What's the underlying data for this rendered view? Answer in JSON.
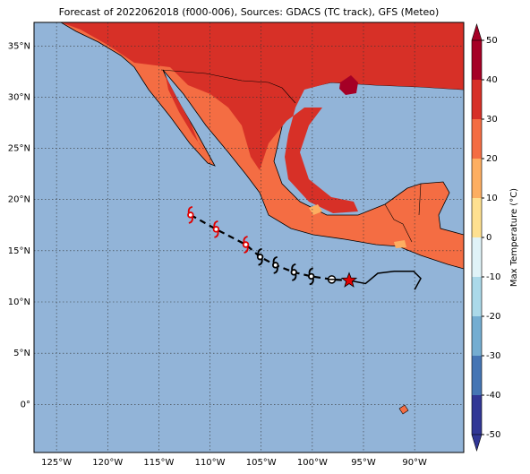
{
  "chart_data": {
    "type": "map",
    "title": "Forecast of 2022062018 (f000-006), Sources: GDACS (TC track), GFS (Meteo)",
    "xlim": [
      -127.2,
      -85.2
    ],
    "ylim": [
      -4.7,
      37.3
    ],
    "xticks": [
      {
        "value": -125,
        "label": "125°W"
      },
      {
        "value": -120,
        "label": "120°W"
      },
      {
        "value": -115,
        "label": "115°W"
      },
      {
        "value": -110,
        "label": "110°W"
      },
      {
        "value": -105,
        "label": "105°W"
      },
      {
        "value": -100,
        "label": "100°W"
      },
      {
        "value": -95,
        "label": "95°W"
      },
      {
        "value": -90,
        "label": "90°W"
      }
    ],
    "yticks": [
      {
        "value": 0,
        "label": "0°"
      },
      {
        "value": 5,
        "label": "5°N"
      },
      {
        "value": 10,
        "label": "10°N"
      },
      {
        "value": 15,
        "label": "15°N"
      },
      {
        "value": 20,
        "label": "20°N"
      },
      {
        "value": 25,
        "label": "25°N"
      },
      {
        "value": 30,
        "label": "30°N"
      },
      {
        "value": 35,
        "label": "35°N"
      }
    ],
    "grid": true,
    "colorbar": {
      "label": "Max Temperature (°C)",
      "lim": [
        -50,
        50
      ],
      "ticks": [
        -50,
        -40,
        -30,
        -20,
        -10,
        0,
        10,
        20,
        30,
        40,
        50
      ],
      "colors": [
        "#313695",
        "#4575b4",
        "#74add1",
        "#abd9e9",
        "#e0f3f8",
        "#fee090",
        "#fdae61",
        "#f46d43",
        "#d73027",
        "#a50026"
      ]
    },
    "forecast_track": {
      "lon": [
        -111.9,
        -109.4,
        -106.5,
        -105.1,
        -103.6,
        -101.8,
        -100.1,
        -98.1
      ],
      "lat": [
        18.5,
        17.1,
        15.6,
        14.4,
        13.6,
        12.9,
        12.5,
        12.2
      ],
      "point_colors": [
        "#e00000",
        "#e00000",
        "#e00000",
        "#000000",
        "#000000",
        "#000000",
        "#000000",
        "#000000"
      ],
      "point_symbols": [
        "cyclone",
        "cyclone",
        "cyclone",
        "cyclone",
        "cyclone",
        "cyclone",
        "cyclone",
        "low"
      ]
    },
    "current_position": {
      "lon": -96.4,
      "lat": 12.1,
      "color": "#e00000"
    },
    "past_track": {
      "lon": [
        -96.4,
        -94.8,
        -93.6,
        -92.0,
        -90.1,
        -89.4,
        -90.0
      ],
      "lat": [
        12.1,
        11.8,
        12.8,
        13.0,
        13.0,
        12.3,
        11.2
      ]
    }
  }
}
